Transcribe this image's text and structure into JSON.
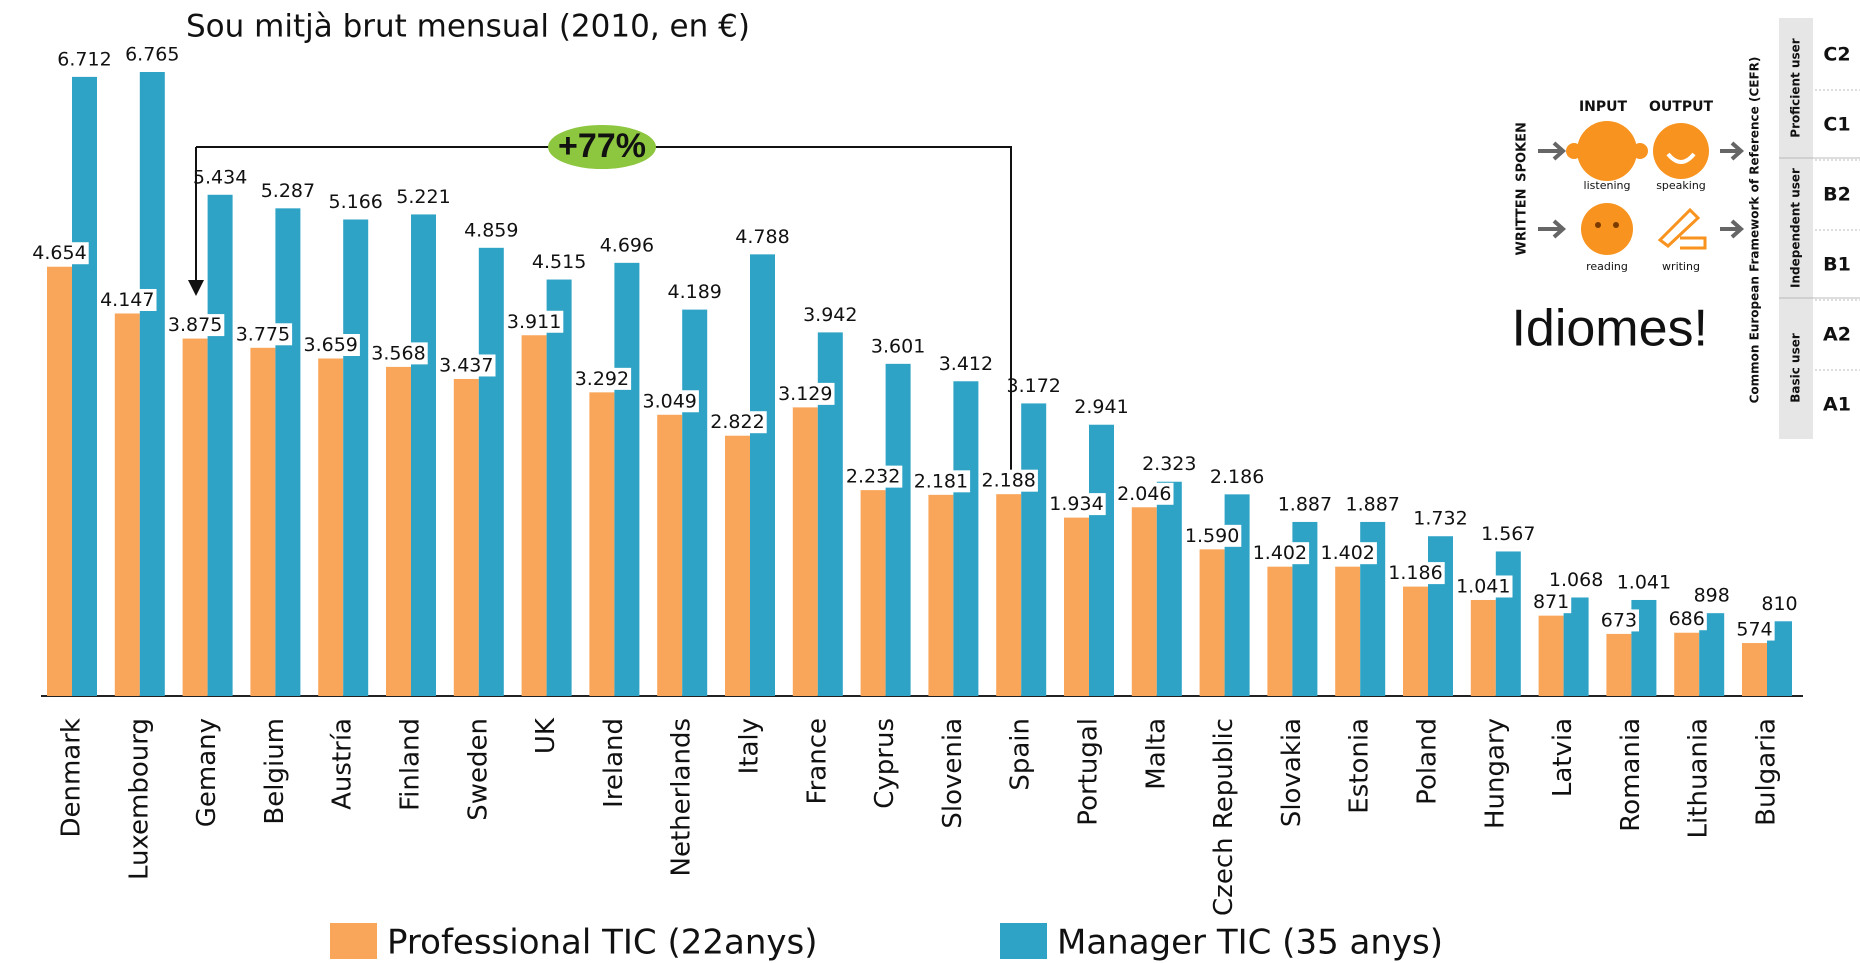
{
  "chart_data": {
    "type": "bar",
    "title": "Sou mitjà brut mensual  (2010, en €)",
    "categories": [
      "Denmark",
      "Luxembourg",
      "Gemany",
      "Belgium",
      "Austría",
      "Finland",
      "Sweden",
      "UK",
      "Ireland",
      "Netherlands",
      "Italy",
      "France",
      "Cyprus",
      "Slovenia",
      "Spain",
      "Portugal",
      "Malta",
      "Czech Republic",
      "Slovakia",
      "Estonia",
      "Poland",
      "Hungary",
      "Latvia",
      "Romania",
      "Lithuania",
      "Bulgaria"
    ],
    "series": [
      {
        "name": "Professional TIC (22anys)",
        "color": "#f9a65a",
        "values": [
          4654,
          4147,
          3875,
          3775,
          3659,
          3568,
          3437,
          3911,
          3292,
          3049,
          2822,
          3129,
          2232,
          2181,
          2188,
          1934,
          2046,
          1590,
          1402,
          1402,
          1186,
          1041,
          871,
          673,
          686,
          574
        ],
        "value_labels": [
          "4.654",
          "4.147",
          "3.875",
          "3.775",
          "3.659",
          "3.568",
          "3.437",
          "3.911",
          "3.292",
          "3.049",
          "2.822",
          "3.129",
          "2.232",
          "2.181",
          "2.188",
          "1.934",
          "2.046",
          "1.590",
          "1.402",
          "1.402",
          "1.186",
          "1.041",
          "871",
          "673",
          "686",
          "574"
        ]
      },
      {
        "name": "Manager TIC (35 anys)",
        "color": "#2ea3c6",
        "values": [
          6712,
          6765,
          5434,
          5287,
          5166,
          5221,
          4859,
          4515,
          4696,
          4189,
          4788,
          3942,
          3601,
          3412,
          3172,
          2941,
          2323,
          2186,
          1887,
          1887,
          1732,
          1567,
          1068,
          1041,
          898,
          810
        ],
        "value_labels": [
          "6.712",
          "6.765",
          "5.434",
          "5.287",
          "5.166",
          "5.221",
          "4.859",
          "4.515",
          "4.696",
          "4.189",
          "4.788",
          "3.942",
          "3.601",
          "3.412",
          "3.172",
          "2.941",
          "2.323",
          "2.186",
          "1.887",
          "1.887",
          "1.732",
          "1.567",
          "1.068",
          "1.041",
          "898",
          "810"
        ]
      }
    ],
    "annotation": "+77%"
  },
  "inset": {
    "input": "INPUT",
    "output": "OUTPUT",
    "spoken": "SPOKEN",
    "written": "WRITTEN",
    "listening": "listening",
    "speaking": "speaking",
    "reading": "reading",
    "writing": "writing",
    "framework": "Common European Framework of Reference (CEFR)",
    "groups": [
      "Proficient user",
      "Independent user",
      "Basic user"
    ],
    "levels": [
      "C2",
      "C1",
      "B2",
      "B1",
      "A2",
      "A1"
    ],
    "slogan": "Idiomes!"
  }
}
